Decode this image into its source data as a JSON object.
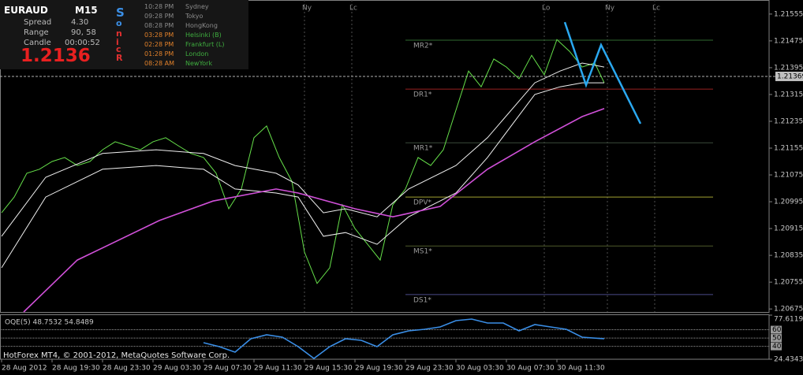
{
  "info_panel": {
    "symbol": "EURAUD",
    "timeframe": "M15",
    "spread_label": "Spread",
    "spread": "4.30",
    "range_label": "Range",
    "range": "90, 58",
    "candle_label": "Candle",
    "candle": "00:00:52",
    "price": "1.2136",
    "brand_letters": [
      {
        "text": "S",
        "color": "#3b8fe6"
      },
      {
        "text": "o",
        "color": "#3b8fe6"
      },
      {
        "text": "n",
        "color": "#e03030"
      },
      {
        "text": "i",
        "color": "#e03030"
      },
      {
        "text": "c",
        "color": "#e03030"
      },
      {
        "text": "R",
        "color": "#e03030"
      }
    ]
  },
  "clocks": [
    {
      "time": "10:28 PM",
      "city": "Sydney",
      "time_color": "#8a8a8a",
      "city_color": "#8a8a8a"
    },
    {
      "time": "09:28 PM",
      "city": "Tokyo",
      "time_color": "#8a8a8a",
      "city_color": "#8a8a8a"
    },
    {
      "time": "08:28 PM",
      "city": "HongKong",
      "time_color": "#8a8a8a",
      "city_color": "#8a8a8a"
    },
    {
      "time": "03:28 PM",
      "city": "Helsinki  (B)",
      "time_color": "#e0802a",
      "city_color": "#3fae3f"
    },
    {
      "time": "02:28 PM",
      "city": "Frankfurt  (L)",
      "time_color": "#e0802a",
      "city_color": "#3fae3f"
    },
    {
      "time": "01:28 PM",
      "city": "London",
      "time_color": "#e0802a",
      "city_color": "#3fae3f"
    },
    {
      "time": "08:28 AM",
      "city": "NewYork",
      "time_color": "#e0802a",
      "city_color": "#3fae3f"
    }
  ],
  "footer": "HotForex MT4, © 2001-2012, MetaQuotes Software Corp.",
  "chart_data": [
    {
      "type": "line",
      "x": [
        0,
        4,
        8,
        12,
        16,
        20,
        24,
        28,
        32,
        36,
        40,
        44,
        48,
        52,
        56,
        60,
        64,
        68,
        72,
        76,
        80,
        84,
        88,
        92,
        96,
        100,
        104,
        108,
        112,
        116,
        120,
        124,
        128,
        132,
        136,
        140,
        144,
        148,
        152,
        156,
        160,
        164,
        168,
        172,
        176,
        180,
        184,
        188,
        191
      ],
      "xlim": [
        -0.5,
        243.25
      ],
      "xticks": [
        {
          "value": 0,
          "label": "28 Aug 2012"
        },
        {
          "value": 16,
          "label": "28 Aug 19:30"
        },
        {
          "value": 32,
          "label": "28 Aug 23:30"
        },
        {
          "value": 48,
          "label": "29 Aug 03:30"
        },
        {
          "value": 64,
          "label": "29 Aug 07:30"
        },
        {
          "value": 80,
          "label": "29 Aug 11:30"
        },
        {
          "value": 96,
          "label": "29 Aug 15:30"
        },
        {
          "value": 112,
          "label": "29 Aug 19:30"
        },
        {
          "value": 128,
          "label": "29 Aug 23:30"
        },
        {
          "value": 144,
          "label": "30 Aug 03:30"
        },
        {
          "value": 160,
          "label": "30 Aug 07:30"
        },
        {
          "value": 176,
          "label": "30 Aug 11:30"
        }
      ],
      "ylim": [
        1.20666,
        1.21597
      ],
      "yticks": [
        1.21555,
        1.21475,
        1.21395,
        1.21315,
        1.21235,
        1.21155,
        1.21075,
        1.20995,
        1.20915,
        1.20835,
        1.20755,
        1.20675
      ],
      "bid": 1.21369,
      "series": [
        {
          "color": "#66e04a",
          "width": 1,
          "values": [
            1.20962,
            1.21009,
            1.2108,
            1.21092,
            1.21115,
            1.21127,
            1.21103,
            1.21115,
            1.2115,
            1.21174,
            1.21162,
            1.2115,
            1.21174,
            1.21186,
            1.21162,
            1.21139,
            1.21127,
            1.2108,
            1.20974,
            1.21033,
            1.21186,
            1.21221,
            1.21127,
            1.21056,
            1.20845,
            1.20751,
            1.20798,
            1.20986,
            1.20915,
            1.20868,
            1.20821,
            1.20986,
            1.21033,
            1.21127,
            1.21103,
            1.2115,
            1.21268,
            1.21385,
            1.21338,
            1.21421,
            1.21397,
            1.21362,
            1.21432,
            1.21374,
            1.21479,
            1.21444,
            1.21397,
            1.21409,
            1.2135
          ]
        },
        {
          "color": "#f0f0f0",
          "width": 1,
          "x": [
            0,
            14,
            32,
            49,
            64,
            74,
            87,
            94,
            102,
            109,
            119,
            129,
            144,
            154,
            169,
            177,
            184,
            191
          ],
          "values": [
            1.20892,
            1.21068,
            1.21139,
            1.2115,
            1.21139,
            1.21103,
            1.2108,
            1.21045,
            1.20962,
            1.20974,
            1.2095,
            1.21033,
            1.21103,
            1.21186,
            1.2135,
            1.21385,
            1.21409,
            1.21397
          ]
        },
        {
          "color": "#f0f0f0",
          "width": 1,
          "x": [
            0,
            14,
            32,
            49,
            64,
            74,
            87,
            94,
            102,
            109,
            119,
            129,
            144,
            154,
            169,
            177,
            184,
            191
          ],
          "values": [
            1.20798,
            1.21009,
            1.21092,
            1.21103,
            1.21092,
            1.21033,
            1.21021,
            1.21009,
            1.20892,
            1.20903,
            1.20868,
            1.2095,
            1.21021,
            1.21127,
            1.21315,
            1.21338,
            1.2135,
            1.2135
          ]
        },
        {
          "color": "#d050d8",
          "width": 1.6,
          "x": [
            7,
            24,
            50,
            67,
            87,
            94,
            112,
            124,
            139,
            154,
            169,
            184,
            191
          ],
          "values": [
            1.20666,
            1.20821,
            1.20939,
            1.20997,
            1.21033,
            1.21021,
            1.20974,
            1.2095,
            1.20981,
            1.21092,
            1.21174,
            1.21249,
            1.21273
          ]
        },
        {
          "color": "#2aa8f0",
          "width": 2.5,
          "x": [
            178.5,
            185.25,
            190,
            195.75,
            202.5
          ],
          "values": [
            1.21531,
            1.21343,
            1.21463,
            1.21355,
            1.21228
          ]
        }
      ],
      "pivots": [
        {
          "label": "MR2*",
          "value": 1.21477,
          "color": "#2f6a2f"
        },
        {
          "label": "DR1*",
          "value": 1.21331,
          "color": "#9a2020"
        },
        {
          "label": "MR1*",
          "value": 1.21171,
          "color": "#3a4a3a"
        },
        {
          "label": "DPV*",
          "value": 1.21009,
          "color": "#a0a030"
        },
        {
          "label": "MS1*",
          "value": 1.20863,
          "color": "#4d5a2a"
        },
        {
          "label": "DS1*",
          "value": 1.20718,
          "color": "#4a4a8a"
        }
      ],
      "pivot_range": [
        128,
        225.5
      ],
      "sessions": [
        {
          "label": "Ny",
          "x": 96
        },
        {
          "label": "Lc",
          "x": 111
        },
        {
          "label": "Lo",
          "x": 172
        },
        {
          "label": "Ny",
          "x": 192
        },
        {
          "label": "Lc",
          "x": 207
        }
      ]
    },
    {
      "type": "line",
      "title": "OQE(5) 48.7532 54.8489",
      "x": [
        64,
        69,
        74,
        79,
        84,
        89,
        94,
        99,
        104,
        109,
        114,
        119,
        124,
        129,
        134,
        139,
        144,
        149,
        154,
        159,
        164,
        169,
        174,
        179,
        184,
        191
      ],
      "xlim": [
        -0.5,
        243.25
      ],
      "ylim": [
        24.4343,
        77.6119
      ],
      "yticks": [
        77.6119,
        60,
        50,
        40,
        24.4343
      ],
      "series": [
        {
          "color": "#3a8ee6",
          "width": 1.6,
          "values": [
            44.37,
            39.63,
            32.98,
            49.12,
            53.87,
            51.02,
            39.63,
            25.39,
            39.63,
            49.12,
            47.22,
            39.63,
            53.87,
            58.62,
            60.52,
            63.37,
            70.96,
            72.86,
            68.12,
            68.12,
            58.62,
            66.22,
            63.37,
            60.52,
            51.02,
            49.12
          ]
        }
      ]
    }
  ]
}
